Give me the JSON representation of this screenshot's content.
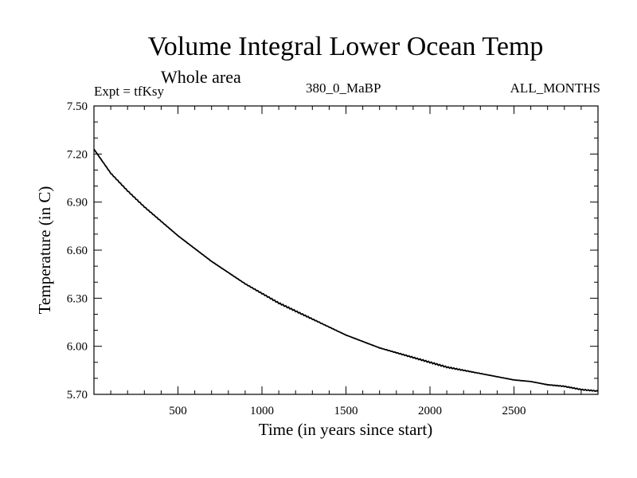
{
  "chart_data": {
    "type": "line",
    "title": "Volume Integral Lower Ocean Temp",
    "subtitle": "Whole area",
    "left_label": "Expt = tfKsy",
    "center_label": "380_0_MaBP",
    "right_label": "ALL_MONTHS",
    "xlabel": "Time (in years since start)",
    "ylabel": "Temperature (in C)",
    "xlim": [
      0,
      3000
    ],
    "ylim": [
      5.7,
      7.5
    ],
    "x_ticks": [
      500,
      1000,
      1500,
      2000,
      2500
    ],
    "x_tick_labels": [
      "500",
      "1000",
      "1500",
      "2000",
      "2500"
    ],
    "y_ticks": [
      5.7,
      6.0,
      6.3,
      6.6,
      6.9,
      7.2,
      7.5
    ],
    "y_tick_labels": [
      "5.70",
      "6.00",
      "6.30",
      "6.60",
      "6.90",
      "7.20",
      "7.50"
    ],
    "series": [
      {
        "name": "Lower Ocean Temp",
        "color": "#000000",
        "x": [
          0,
          100,
          200,
          300,
          400,
          500,
          600,
          700,
          800,
          900,
          1000,
          1100,
          1200,
          1300,
          1400,
          1500,
          1600,
          1700,
          1800,
          1900,
          2000,
          2100,
          2200,
          2300,
          2400,
          2500,
          2600,
          2700,
          2800,
          2900,
          3000
        ],
        "y": [
          7.23,
          7.08,
          6.97,
          6.87,
          6.78,
          6.69,
          6.61,
          6.53,
          6.46,
          6.39,
          6.33,
          6.27,
          6.22,
          6.17,
          6.12,
          6.07,
          6.03,
          5.99,
          5.96,
          5.93,
          5.9,
          5.87,
          5.85,
          5.83,
          5.81,
          5.79,
          5.78,
          5.76,
          5.75,
          5.73,
          5.72
        ]
      }
    ]
  }
}
